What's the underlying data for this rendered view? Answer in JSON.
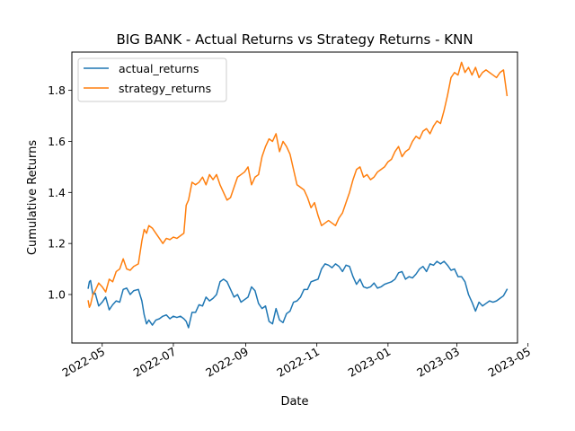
{
  "chart_data": {
    "type": "line",
    "title": "BIG BANK - Actual Returns vs Strategy Returns - KNN",
    "xlabel": "Date",
    "ylabel": "Cumulative Returns",
    "xlim": [
      "2022-04-05",
      "2023-04-22"
    ],
    "ylim": [
      0.81,
      1.95
    ],
    "grid": false,
    "legend_position": "top-left",
    "x_ticks": [
      "2022-05",
      "2022-07",
      "2022-09",
      "2022-11",
      "2023-01",
      "2023-03",
      "2023-05"
    ],
    "y_ticks": [
      "1.0",
      "1.2",
      "1.4",
      "1.6",
      "1.8"
    ],
    "series": [
      {
        "name": "actual_returns",
        "color": "#1f77b4",
        "x": [
          "2022-04-19",
          "2022-04-20",
          "2022-04-21",
          "2022-04-23",
          "2022-04-25",
          "2022-04-28",
          "2022-05-01",
          "2022-05-04",
          "2022-05-07",
          "2022-05-10",
          "2022-05-13",
          "2022-05-16",
          "2022-05-19",
          "2022-05-22",
          "2022-05-25",
          "2022-05-28",
          "2022-06-01",
          "2022-06-04",
          "2022-06-06",
          "2022-06-08",
          "2022-06-10",
          "2022-06-13",
          "2022-06-16",
          "2022-06-19",
          "2022-06-22",
          "2022-06-25",
          "2022-06-28",
          "2022-07-01",
          "2022-07-04",
          "2022-07-07",
          "2022-07-10",
          "2022-07-12",
          "2022-07-14",
          "2022-07-17",
          "2022-07-20",
          "2022-07-23",
          "2022-07-26",
          "2022-07-29",
          "2022-08-01",
          "2022-08-04",
          "2022-08-07",
          "2022-08-10",
          "2022-08-13",
          "2022-08-16",
          "2022-08-19",
          "2022-08-22",
          "2022-08-25",
          "2022-08-28",
          "2022-08-31",
          "2022-09-03",
          "2022-09-06",
          "2022-09-09",
          "2022-09-12",
          "2022-09-15",
          "2022-09-18",
          "2022-09-21",
          "2022-09-24",
          "2022-09-27",
          "2022-09-30",
          "2022-10-03",
          "2022-10-06",
          "2022-10-09",
          "2022-10-12",
          "2022-10-15",
          "2022-10-18",
          "2022-10-21",
          "2022-10-24",
          "2022-10-27",
          "2022-10-30",
          "2022-11-02",
          "2022-11-05",
          "2022-11-08",
          "2022-11-11",
          "2022-11-14",
          "2022-11-17",
          "2022-11-20",
          "2022-11-23",
          "2022-11-26",
          "2022-11-29",
          "2022-12-02",
          "2022-12-05",
          "2022-12-08",
          "2022-12-11",
          "2022-12-14",
          "2022-12-17",
          "2022-12-20",
          "2022-12-23",
          "2022-12-26",
          "2022-12-29",
          "2023-01-01",
          "2023-01-04",
          "2023-01-07",
          "2023-01-10",
          "2023-01-13",
          "2023-01-16",
          "2023-01-19",
          "2023-01-22",
          "2023-01-25",
          "2023-01-28",
          "2023-01-31",
          "2023-02-03",
          "2023-02-06",
          "2023-02-09",
          "2023-02-12",
          "2023-02-15",
          "2023-02-18",
          "2023-02-21",
          "2023-02-24",
          "2023-02-27",
          "2023-03-02",
          "2023-03-05",
          "2023-03-08",
          "2023-03-11",
          "2023-03-14",
          "2023-03-17",
          "2023-03-20",
          "2023-03-23",
          "2023-03-26",
          "2023-03-29",
          "2023-04-01",
          "2023-04-04",
          "2023-04-07",
          "2023-04-10",
          "2023-04-13"
        ],
        "values": [
          1.025,
          1.05,
          1.055,
          1.0,
          1.005,
          0.955,
          0.97,
          0.99,
          0.94,
          0.96,
          0.975,
          0.97,
          1.02,
          1.025,
          1.0,
          1.015,
          1.02,
          0.975,
          0.92,
          0.885,
          0.9,
          0.88,
          0.9,
          0.905,
          0.915,
          0.92,
          0.905,
          0.915,
          0.91,
          0.915,
          0.905,
          0.895,
          0.87,
          0.93,
          0.93,
          0.96,
          0.955,
          0.99,
          0.975,
          0.985,
          1.0,
          1.05,
          1.06,
          1.05,
          1.02,
          0.99,
          1.0,
          0.97,
          0.98,
          0.99,
          1.03,
          1.015,
          0.965,
          0.945,
          0.955,
          0.895,
          0.885,
          0.945,
          0.9,
          0.89,
          0.925,
          0.935,
          0.97,
          0.975,
          0.99,
          1.02,
          1.02,
          1.05,
          1.055,
          1.06,
          1.1,
          1.12,
          1.115,
          1.105,
          1.12,
          1.11,
          1.09,
          1.115,
          1.11,
          1.07,
          1.04,
          1.06,
          1.03,
          1.025,
          1.03,
          1.045,
          1.025,
          1.03,
          1.04,
          1.045,
          1.05,
          1.06,
          1.085,
          1.09,
          1.06,
          1.07,
          1.065,
          1.08,
          1.1,
          1.11,
          1.09,
          1.12,
          1.115,
          1.13,
          1.12,
          1.13,
          1.115,
          1.095,
          1.1,
          1.07,
          1.07,
          1.05,
          1.0,
          0.97,
          0.935,
          0.97,
          0.955,
          0.965,
          0.975,
          0.97,
          0.975,
          0.985,
          0.995,
          1.02
        ]
      },
      {
        "name": "strategy_returns",
        "color": "#ff7f0e",
        "x": [
          "2022-04-19",
          "2022-04-20",
          "2022-04-21",
          "2022-04-23",
          "2022-04-25",
          "2022-04-28",
          "2022-05-01",
          "2022-05-04",
          "2022-05-07",
          "2022-05-10",
          "2022-05-13",
          "2022-05-16",
          "2022-05-19",
          "2022-05-22",
          "2022-05-25",
          "2022-05-28",
          "2022-06-01",
          "2022-06-04",
          "2022-06-06",
          "2022-06-08",
          "2022-06-10",
          "2022-06-13",
          "2022-06-16",
          "2022-06-19",
          "2022-06-22",
          "2022-06-25",
          "2022-06-28",
          "2022-07-01",
          "2022-07-04",
          "2022-07-07",
          "2022-07-10",
          "2022-07-12",
          "2022-07-14",
          "2022-07-17",
          "2022-07-20",
          "2022-07-23",
          "2022-07-26",
          "2022-07-29",
          "2022-08-01",
          "2022-08-04",
          "2022-08-07",
          "2022-08-10",
          "2022-08-13",
          "2022-08-16",
          "2022-08-19",
          "2022-08-22",
          "2022-08-25",
          "2022-08-28",
          "2022-08-31",
          "2022-09-03",
          "2022-09-06",
          "2022-09-09",
          "2022-09-12",
          "2022-09-15",
          "2022-09-18",
          "2022-09-21",
          "2022-09-24",
          "2022-09-27",
          "2022-09-30",
          "2022-10-03",
          "2022-10-06",
          "2022-10-09",
          "2022-10-12",
          "2022-10-15",
          "2022-10-18",
          "2022-10-21",
          "2022-10-24",
          "2022-10-27",
          "2022-10-30",
          "2022-11-02",
          "2022-11-05",
          "2022-11-08",
          "2022-11-11",
          "2022-11-14",
          "2022-11-17",
          "2022-11-20",
          "2022-11-23",
          "2022-11-26",
          "2022-11-29",
          "2022-12-02",
          "2022-12-05",
          "2022-12-08",
          "2022-12-11",
          "2022-12-14",
          "2022-12-17",
          "2022-12-20",
          "2022-12-23",
          "2022-12-26",
          "2022-12-29",
          "2023-01-01",
          "2023-01-04",
          "2023-01-07",
          "2023-01-10",
          "2023-01-13",
          "2023-01-16",
          "2023-01-19",
          "2023-01-22",
          "2023-01-25",
          "2023-01-28",
          "2023-01-31",
          "2023-02-03",
          "2023-02-06",
          "2023-02-09",
          "2023-02-12",
          "2023-02-15",
          "2023-02-18",
          "2023-02-21",
          "2023-02-24",
          "2023-02-27",
          "2023-03-02",
          "2023-03-05",
          "2023-03-08",
          "2023-03-11",
          "2023-03-14",
          "2023-03-17",
          "2023-03-20",
          "2023-03-23",
          "2023-03-26",
          "2023-03-29",
          "2023-04-01",
          "2023-04-04",
          "2023-04-07",
          "2023-04-10",
          "2023-04-13"
        ],
        "values": [
          0.975,
          0.95,
          0.96,
          1.0,
          1.015,
          1.045,
          1.03,
          1.01,
          1.06,
          1.05,
          1.09,
          1.1,
          1.14,
          1.1,
          1.095,
          1.11,
          1.12,
          1.21,
          1.255,
          1.24,
          1.27,
          1.26,
          1.24,
          1.22,
          1.2,
          1.22,
          1.215,
          1.225,
          1.22,
          1.23,
          1.24,
          1.35,
          1.37,
          1.44,
          1.43,
          1.44,
          1.46,
          1.43,
          1.47,
          1.45,
          1.47,
          1.43,
          1.4,
          1.37,
          1.38,
          1.42,
          1.46,
          1.47,
          1.48,
          1.5,
          1.43,
          1.46,
          1.47,
          1.54,
          1.58,
          1.61,
          1.6,
          1.63,
          1.56,
          1.6,
          1.58,
          1.55,
          1.49,
          1.43,
          1.42,
          1.41,
          1.38,
          1.34,
          1.36,
          1.31,
          1.27,
          1.28,
          1.29,
          1.28,
          1.27,
          1.3,
          1.32,
          1.36,
          1.4,
          1.45,
          1.49,
          1.5,
          1.46,
          1.47,
          1.45,
          1.46,
          1.48,
          1.49,
          1.5,
          1.52,
          1.53,
          1.56,
          1.58,
          1.54,
          1.56,
          1.57,
          1.6,
          1.62,
          1.61,
          1.64,
          1.65,
          1.63,
          1.66,
          1.68,
          1.67,
          1.72,
          1.78,
          1.85,
          1.87,
          1.86,
          1.91,
          1.87,
          1.89,
          1.86,
          1.89,
          1.85,
          1.87,
          1.88,
          1.87,
          1.86,
          1.85,
          1.87,
          1.88,
          1.78
        ]
      }
    ]
  }
}
